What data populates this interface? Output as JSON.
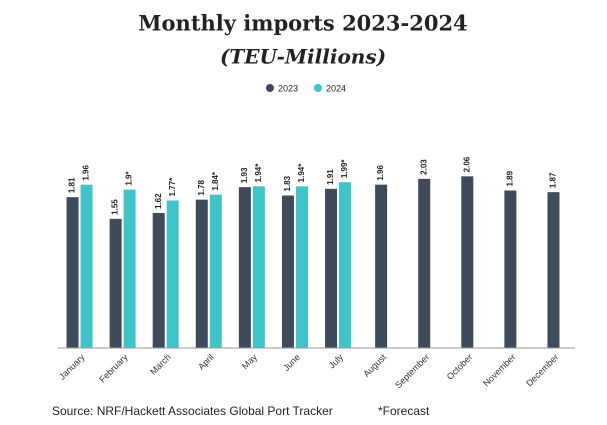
{
  "chart_data": {
    "type": "bar",
    "title": "Monthly imports 2023-2024",
    "subtitle": "(TEU-Millions)",
    "categories": [
      "January",
      "February",
      "March",
      "April",
      "May",
      "June",
      "July",
      "August",
      "September",
      "October",
      "November",
      "December"
    ],
    "series": [
      {
        "name": "2023",
        "color": "#3d4b5a",
        "values": [
          1.81,
          1.55,
          1.62,
          1.78,
          1.93,
          1.83,
          1.91,
          1.96,
          2.03,
          2.06,
          1.89,
          1.87
        ]
      },
      {
        "name": "2024",
        "color": "#3fc4c9",
        "values": [
          1.96,
          1.9,
          1.77,
          1.84,
          1.94,
          1.94,
          1.99,
          null,
          null,
          null,
          null,
          null
        ],
        "value_labels": [
          "1.96",
          "1.9*",
          "1.77*",
          "1.84*",
          "1.94*",
          "1.94*",
          "1.99*",
          null,
          null,
          null,
          null,
          null
        ]
      }
    ],
    "ylim": [
      0,
      2.4
    ],
    "legend": "top",
    "source": "Source: NRF/Hackett Associates Global Port Tracker",
    "note": "*Forecast"
  }
}
